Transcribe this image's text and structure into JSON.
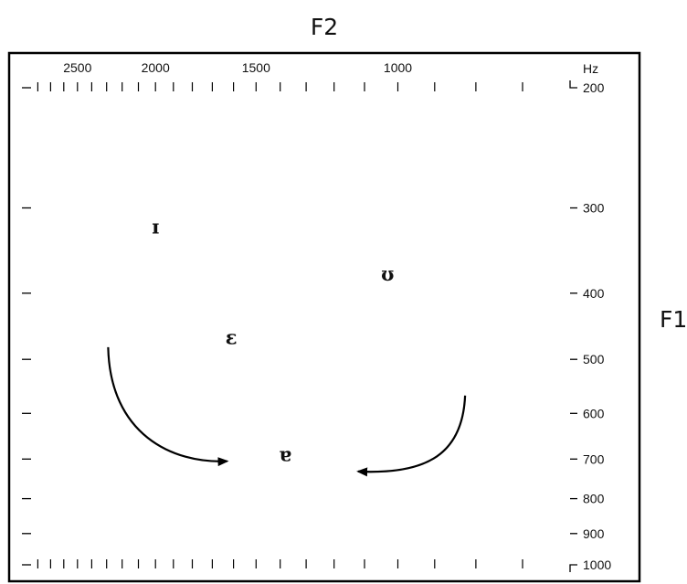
{
  "chart_data": {
    "type": "scatter",
    "title": "",
    "x_axis": {
      "label": "F2",
      "unit": "",
      "reversed": true,
      "scale": "log",
      "lim": [
        2900,
        580
      ],
      "major_ticks": [
        2500,
        2000,
        1500,
        1000
      ],
      "minor_ticks": [
        2800,
        2700,
        2600,
        2500,
        2400,
        2300,
        2200,
        2100,
        2000,
        1900,
        1800,
        1700,
        1600,
        1500,
        1400,
        1300,
        1200,
        1100,
        1000,
        900,
        800,
        700
      ]
    },
    "y_axis": {
      "label": "F1",
      "unit": "Hz",
      "scale": "log",
      "lim": [
        200,
        1000
      ],
      "ticks": [
        200,
        300,
        400,
        500,
        600,
        700,
        800,
        900,
        1000
      ]
    },
    "points": [
      {
        "label": "ɪ",
        "F2": 2000,
        "F1": 320
      },
      {
        "label": "ɛ",
        "F2": 1610,
        "F1": 465
      },
      {
        "label": "ʊ",
        "F2": 1030,
        "F1": 375
      },
      {
        "label": "ɐ",
        "F2": 1380,
        "F1": 690
      }
    ],
    "arrows": [
      {
        "from": {
          "F2": 2290,
          "F1": 480
        },
        "to": {
          "F2": 1630,
          "F1": 705
        },
        "curve": "counterclockwise"
      },
      {
        "from": {
          "F2": 825,
          "F1": 565
        },
        "to": {
          "F2": 1120,
          "F1": 730
        },
        "curve": "clockwise"
      }
    ],
    "grid": false,
    "legend": "none"
  }
}
